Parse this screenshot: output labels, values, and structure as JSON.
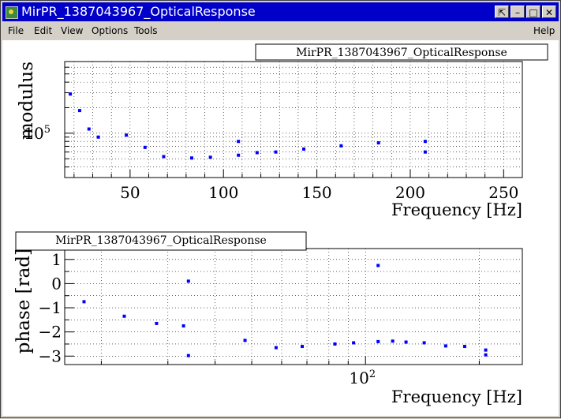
{
  "window": {
    "title": "MirPR_1387043967_OpticalResponse",
    "icon": "root-app-icon",
    "controls": [
      "⇱",
      "–",
      "□",
      "✕"
    ]
  },
  "menu": {
    "items": [
      "File",
      "Edit",
      "View",
      "Options",
      "Tools"
    ],
    "help": "Help"
  },
  "chart_data": [
    {
      "type": "scatter",
      "title": "MirPR_1387043967_OpticalResponse",
      "xlabel": "Frequency [Hz]",
      "ylabel": "modulus",
      "xscale": "linear",
      "yscale": "log",
      "xlim": [
        15,
        260
      ],
      "ylim": [
        30000,
        700000
      ],
      "xticks": [
        50,
        100,
        150,
        200,
        250
      ],
      "yticks": [
        {
          "value": 100000,
          "label": "10^5"
        }
      ],
      "grid": true,
      "legend": "top-right",
      "color": "#0000ff",
      "x": [
        18,
        23,
        28,
        33,
        48,
        58,
        68,
        83,
        93,
        108,
        108,
        118,
        128,
        143,
        163,
        183,
        208,
        208
      ],
      "y": [
        290000,
        185000,
        112000,
        90000,
        95000,
        68000,
        53000,
        51000,
        52000,
        80000,
        55000,
        59000,
        60000,
        65000,
        71000,
        77000,
        80000,
        60000
      ]
    },
    {
      "type": "scatter",
      "title": "MirPR_1387043967_OpticalResponse",
      "xlabel": "Frequency [Hz]",
      "ylabel": "phase [rad]",
      "xscale": "log",
      "yscale": "linear",
      "xlim": [
        16,
        260
      ],
      "ylim": [
        -3.35,
        1.45
      ],
      "yticks": [
        -3,
        -2,
        -1,
        0,
        1
      ],
      "xticks": [
        {
          "value": 100,
          "label": "10^2"
        }
      ],
      "grid": true,
      "legend": "top-left",
      "color": "#0000ff",
      "x": [
        18,
        23,
        28,
        33,
        34,
        34,
        48,
        58,
        68,
        83,
        93,
        108,
        108,
        118,
        128,
        143,
        163,
        183,
        208,
        208
      ],
      "y": [
        -0.75,
        -1.35,
        -1.65,
        -1.75,
        0.1,
        -2.98,
        -2.35,
        -2.65,
        -2.6,
        -2.5,
        -2.45,
        0.75,
        -2.4,
        -2.38,
        -2.42,
        -2.45,
        -2.58,
        -2.6,
        -2.95,
        -2.75
      ]
    }
  ]
}
